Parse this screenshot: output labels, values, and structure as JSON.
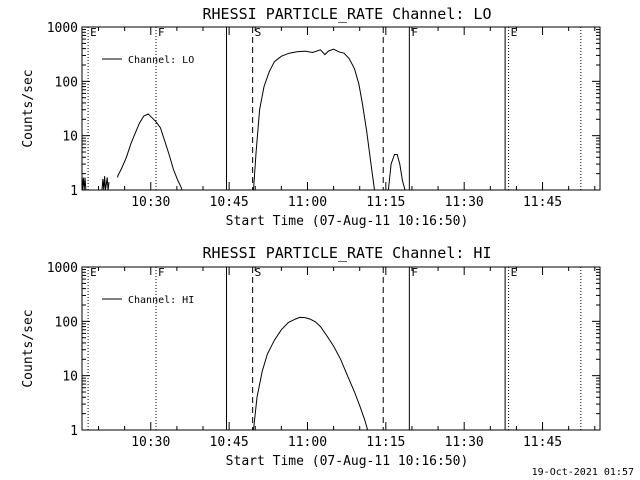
{
  "window": {
    "background": "#ffffff",
    "foreground": "#000000"
  },
  "footer_timestamp": "19-Oct-2021 01:57",
  "chart_data": [
    {
      "type": "line",
      "title": "RHESSI PARTICLE_RATE Channel: LO",
      "xlabel": "Start Time (07-Aug-11 10:16:50)",
      "ylabel": "Counts/sec",
      "yscale": "log",
      "xlim": [
        "10:16:50",
        "11:56:00"
      ],
      "ylim": [
        1,
        1000
      ],
      "xticks": [
        "10:30",
        "10:45",
        "11:00",
        "11:15",
        "11:30",
        "11:45"
      ],
      "yticks": [
        "1",
        "10",
        "100",
        "1000"
      ],
      "legend": {
        "placement": "top-left",
        "label": "Channel: LO"
      },
      "markers": [
        {
          "time": "10:18:00",
          "label": "E",
          "style": "dotted"
        },
        {
          "time": "10:31:00",
          "label": "F",
          "style": "dotted"
        },
        {
          "time": "10:44:30",
          "label": "",
          "style": "solid"
        },
        {
          "time": "10:49:30",
          "label": "S",
          "style": "dashed"
        },
        {
          "time": "11:14:30",
          "label": "",
          "style": "dashed"
        },
        {
          "time": "11:19:30",
          "label": "F",
          "style": "solid"
        },
        {
          "time": "11:37:50",
          "label": "",
          "style": "solid"
        },
        {
          "time": "11:38:30",
          "label": "E",
          "style": "dotted"
        },
        {
          "time": "11:52:20",
          "label": "",
          "style": "dotted"
        }
      ],
      "series": [
        {
          "name": "Channel: LO",
          "segments": [
            {
              "times": [
                "10:16:55",
                "10:17:05",
                "10:17:15",
                "10:17:25",
                "10:17:35"
              ],
              "values": [
                1.0,
                1.7,
                1.0,
                1.7,
                1.0
              ]
            },
            {
              "times": [
                "10:20:40",
                "10:20:50",
                "10:21:00",
                "10:21:10",
                "10:21:20",
                "10:21:40",
                "10:21:50",
                "10:22:00"
              ],
              "values": [
                1.0,
                1.6,
                1.0,
                1.8,
                1.0,
                1.7,
                1.0,
                1.4
              ]
            },
            {
              "times": [
                "10:23:40",
                "10:23:40",
                "10:24:30",
                "10:25:20",
                "10:26:10",
                "10:27:00",
                "10:27:50",
                "10:28:40",
                "10:29:30",
                "10:30:20",
                "10:31:00",
                "10:31:50",
                "10:32:40",
                "10:33:30",
                "10:34:20",
                "10:35:10",
                "10:35:40",
                "10:36:00"
              ],
              "values": [
                1.7,
                1.8,
                2.6,
                4.0,
                7.0,
                11.0,
                17.0,
                23.0,
                25.0,
                21.0,
                18.0,
                14.0,
                8.0,
                4.5,
                2.4,
                1.5,
                1.2,
                1.0
              ]
            },
            {
              "times": [
                "10:49:40",
                "10:50:10",
                "10:50:50",
                "10:51:40",
                "10:52:40",
                "10:53:40",
                "10:55:00",
                "10:56:30",
                "10:58:00",
                "10:59:30",
                "11:01:00",
                "11:02:30",
                "11:03:20",
                "11:04:00",
                "11:05:00",
                "11:06:00",
                "11:07:00",
                "11:08:00",
                "11:09:00",
                "11:09:50",
                "11:10:30",
                "11:11:20",
                "11:12:10",
                "11:12:50"
              ],
              "values": [
                1.0,
                5.0,
                30.0,
                80.0,
                150.0,
                230.0,
                290.0,
                330.0,
                350.0,
                360.0,
                340.0,
                380.0,
                310.0,
                360.0,
                390.0,
                350.0,
                330.0,
                260.0,
                170.0,
                90.0,
                40.0,
                12.0,
                3.0,
                1.0
              ]
            },
            {
              "times": [
                "11:15:30",
                "11:16:00",
                "11:16:40",
                "11:17:10",
                "11:17:40",
                "11:18:10",
                "11:18:40"
              ],
              "values": [
                1.0,
                3.0,
                4.5,
                4.5,
                3.0,
                1.5,
                1.0
              ]
            }
          ]
        }
      ]
    },
    {
      "type": "line",
      "title": "RHESSI PARTICLE_RATE Channel: HI",
      "xlabel": "Start Time (07-Aug-11 10:16:50)",
      "ylabel": "Counts/sec",
      "yscale": "log",
      "xlim": [
        "10:16:50",
        "11:56:00"
      ],
      "ylim": [
        1,
        1000
      ],
      "xticks": [
        "10:30",
        "10:45",
        "11:00",
        "11:15",
        "11:30",
        "11:45"
      ],
      "yticks": [
        "1",
        "10",
        "100",
        "1000"
      ],
      "legend": {
        "placement": "top-left",
        "label": "Channel: HI"
      },
      "markers": [
        {
          "time": "10:18:00",
          "label": "E",
          "style": "dotted"
        },
        {
          "time": "10:31:00",
          "label": "F",
          "style": "dotted"
        },
        {
          "time": "10:44:30",
          "label": "",
          "style": "solid"
        },
        {
          "time": "10:49:30",
          "label": "S",
          "style": "dashed"
        },
        {
          "time": "11:14:30",
          "label": "",
          "style": "dashed"
        },
        {
          "time": "11:19:30",
          "label": "F",
          "style": "solid"
        },
        {
          "time": "11:37:50",
          "label": "",
          "style": "solid"
        },
        {
          "time": "11:38:30",
          "label": "E",
          "style": "dotted"
        },
        {
          "time": "11:52:20",
          "label": "",
          "style": "dotted"
        }
      ],
      "series": [
        {
          "name": "Channel: HI",
          "segments": [
            {
              "times": [
                "10:49:40",
                "10:50:20",
                "10:51:20",
                "10:52:20",
                "10:53:40",
                "10:55:00",
                "10:56:20",
                "10:57:40",
                "10:58:30",
                "10:59:30",
                "11:00:30",
                "11:01:30",
                "11:02:30",
                "11:03:40",
                "11:05:00",
                "11:06:20",
                "11:07:40",
                "11:09:00",
                "11:10:00",
                "11:11:00",
                "11:11:30"
              ],
              "values": [
                1.0,
                4.0,
                12.0,
                25.0,
                45.0,
                70.0,
                95.0,
                110.0,
                118.0,
                117.0,
                110.0,
                98.0,
                80.0,
                55.0,
                35.0,
                20.0,
                10.0,
                5.0,
                2.8,
                1.5,
                1.0
              ]
            }
          ]
        }
      ]
    }
  ]
}
